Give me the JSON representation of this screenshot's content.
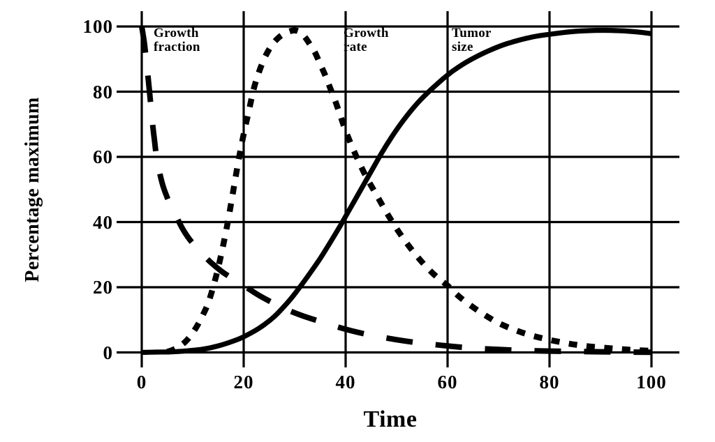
{
  "figure": {
    "background_color": "#ffffff",
    "ink_color": "#000000"
  },
  "chart_data": {
    "type": "line",
    "title": "",
    "xlabel": "Time",
    "ylabel": "Percentage maximum",
    "xlim": [
      0,
      100
    ],
    "ylim": [
      0,
      100
    ],
    "xticks": [
      "0",
      "20",
      "40",
      "60",
      "80",
      "100"
    ],
    "yticks": [
      "0",
      "20",
      "40",
      "60",
      "80",
      "100"
    ],
    "grid": true,
    "legend_position": "inline-annotations-top",
    "series": [
      {
        "name": "Growth fraction",
        "label_lines": [
          "Growth",
          "fraction"
        ],
        "line_style": "long-dash",
        "points": [
          [
            0,
            100
          ],
          [
            0.5,
            95
          ],
          [
            1,
            88
          ],
          [
            1.5,
            80.5
          ],
          [
            2,
            72
          ],
          [
            2.5,
            65
          ],
          [
            3,
            59
          ],
          [
            4,
            52
          ],
          [
            5,
            47.5
          ],
          [
            6,
            44
          ],
          [
            7,
            41
          ],
          [
            8,
            38
          ],
          [
            9,
            35.5
          ],
          [
            10,
            33.5
          ],
          [
            12,
            30
          ],
          [
            14,
            27
          ],
          [
            16,
            24.5
          ],
          [
            18,
            22.5
          ],
          [
            20,
            20.5
          ],
          [
            23,
            17.5
          ],
          [
            26,
            15
          ],
          [
            29,
            12.8
          ],
          [
            32,
            11
          ],
          [
            35,
            9.5
          ],
          [
            38,
            8
          ],
          [
            42,
            6.3
          ],
          [
            46,
            5
          ],
          [
            50,
            3.9
          ],
          [
            54,
            3
          ],
          [
            58,
            2.3
          ],
          [
            62,
            1.7
          ],
          [
            66,
            1.2
          ],
          [
            70,
            0.9
          ],
          [
            75,
            0.6
          ],
          [
            80,
            0.4
          ],
          [
            85,
            0.3
          ],
          [
            90,
            0.2
          ],
          [
            95,
            0.1
          ],
          [
            100,
            0.05
          ]
        ]
      },
      {
        "name": "Growth rate",
        "label_lines": [
          "Growth",
          "rate"
        ],
        "line_style": "dotted",
        "points": [
          [
            5,
            0.2
          ],
          [
            6,
            0.7
          ],
          [
            7,
            1.5
          ],
          [
            8,
            2.5
          ],
          [
            9,
            4
          ],
          [
            10,
            6
          ],
          [
            11,
            8.5
          ],
          [
            12,
            11.5
          ],
          [
            13,
            15
          ],
          [
            14,
            20
          ],
          [
            15,
            26
          ],
          [
            16,
            33
          ],
          [
            17,
            41
          ],
          [
            18,
            50
          ],
          [
            19,
            59
          ],
          [
            20,
            67
          ],
          [
            21,
            74
          ],
          [
            22,
            81
          ],
          [
            23,
            86
          ],
          [
            24,
            90
          ],
          [
            25,
            93
          ],
          [
            26,
            95.2
          ],
          [
            27,
            96.8
          ],
          [
            28,
            97.8
          ],
          [
            29,
            98.5
          ],
          [
            30,
            98.8
          ],
          [
            31,
            98.3
          ],
          [
            32,
            96.8
          ],
          [
            33,
            94.5
          ],
          [
            34,
            92
          ],
          [
            35,
            88.5
          ],
          [
            36,
            85
          ],
          [
            37,
            81
          ],
          [
            38,
            77
          ],
          [
            39,
            72.5
          ],
          [
            40,
            68
          ],
          [
            42,
            60.5
          ],
          [
            44,
            54
          ],
          [
            46,
            48.5
          ],
          [
            48,
            43
          ],
          [
            50,
            38
          ],
          [
            52,
            33.5
          ],
          [
            54,
            29.5
          ],
          [
            56,
            26
          ],
          [
            58,
            23
          ],
          [
            60,
            20.5
          ],
          [
            62,
            17.5
          ],
          [
            64,
            15
          ],
          [
            66,
            12.8
          ],
          [
            68,
            10.8
          ],
          [
            70,
            9
          ],
          [
            73,
            7
          ],
          [
            76,
            5.4
          ],
          [
            79,
            4.2
          ],
          [
            82,
            3.2
          ],
          [
            85,
            2.4
          ],
          [
            88,
            1.8
          ],
          [
            91,
            1.4
          ],
          [
            94,
            1
          ],
          [
            97,
            0.7
          ],
          [
            100,
            0.5
          ]
        ]
      },
      {
        "name": "Tumor size",
        "label_lines": [
          "Tumor",
          "size"
        ],
        "line_style": "solid",
        "points": [
          [
            0,
            0
          ],
          [
            3,
            0.1
          ],
          [
            6,
            0.2
          ],
          [
            9,
            0.5
          ],
          [
            12,
            1
          ],
          [
            15,
            2
          ],
          [
            18,
            3.5
          ],
          [
            20,
            4.8
          ],
          [
            23,
            7.4
          ],
          [
            26,
            11
          ],
          [
            29,
            16
          ],
          [
            31,
            20
          ],
          [
            33,
            24.3
          ],
          [
            35,
            28.8
          ],
          [
            37,
            33.8
          ],
          [
            39,
            39
          ],
          [
            41,
            44.5
          ],
          [
            43,
            50
          ],
          [
            45,
            55.5
          ],
          [
            47,
            61
          ],
          [
            49,
            66
          ],
          [
            51,
            70.5
          ],
          [
            53,
            74.5
          ],
          [
            55,
            78
          ],
          [
            57,
            81
          ],
          [
            59,
            83.8
          ],
          [
            61,
            86.3
          ],
          [
            63,
            88.4
          ],
          [
            65,
            90.2
          ],
          [
            68,
            92.5
          ],
          [
            71,
            94.4
          ],
          [
            74,
            95.8
          ],
          [
            77,
            96.9
          ],
          [
            80,
            97.6
          ],
          [
            83,
            98.2
          ],
          [
            86,
            98.6
          ],
          [
            89,
            98.8
          ],
          [
            92,
            98.8
          ],
          [
            95,
            98.6
          ],
          [
            98,
            98.2
          ],
          [
            100,
            97.8
          ]
        ]
      }
    ]
  }
}
